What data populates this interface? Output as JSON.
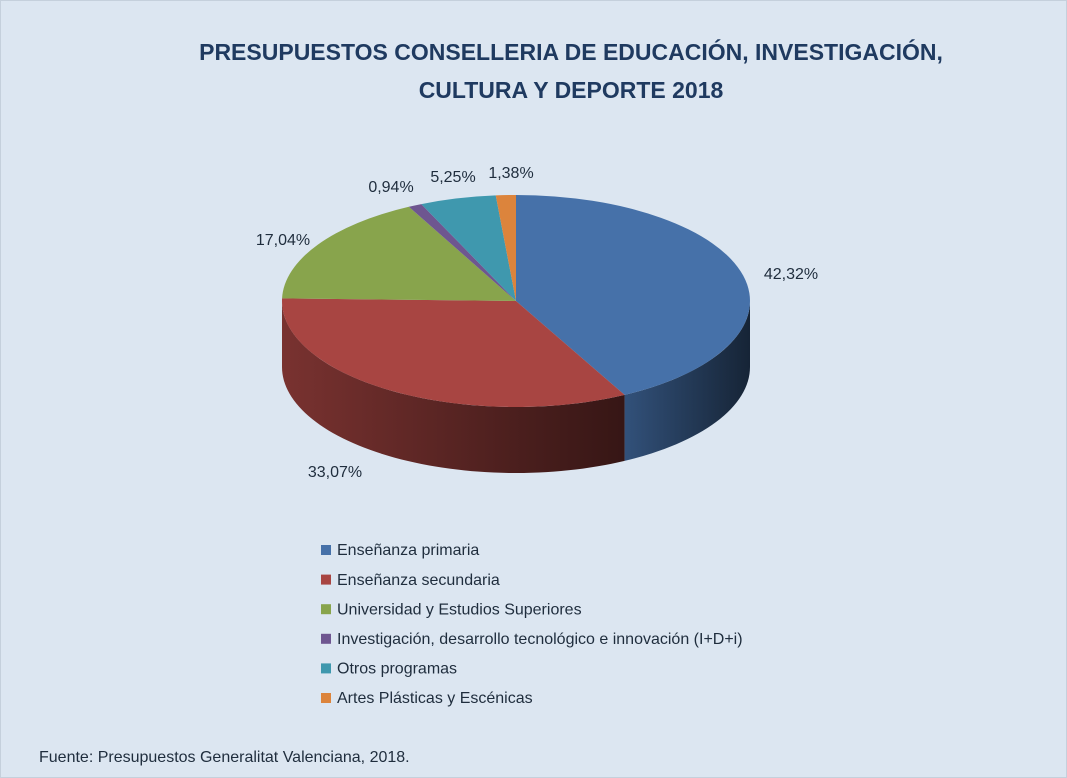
{
  "chart_data": {
    "type": "pie",
    "title": "PRESUPUESTOS CONSELLERIA DE EDUCACIÓN, INVESTIGACIÓN, CULTURA Y DEPORTE 2018",
    "categories": [
      "Enseñanza primaria",
      "Enseñanza secundaria",
      "Universidad y Estudios Superiores",
      "Investigación, desarrollo tecnológico e innovación (I+D+i)",
      "Otros programas",
      "Artes Plásticas y Escénicas"
    ],
    "values": [
      42.32,
      33.07,
      17.04,
      0.94,
      5.25,
      1.38
    ],
    "value_labels": [
      "42,32%",
      "33,07%",
      "17,04%",
      "0,94%",
      "5,25%",
      "1,38%"
    ],
    "colors": [
      "#4671a9",
      "#a84542",
      "#88a44c",
      "#6e5690",
      "#3f98ae",
      "#dc843c"
    ],
    "legend": "bottom",
    "source": "Fuente: Presupuestos Generalitat Valenciana, 2018."
  }
}
